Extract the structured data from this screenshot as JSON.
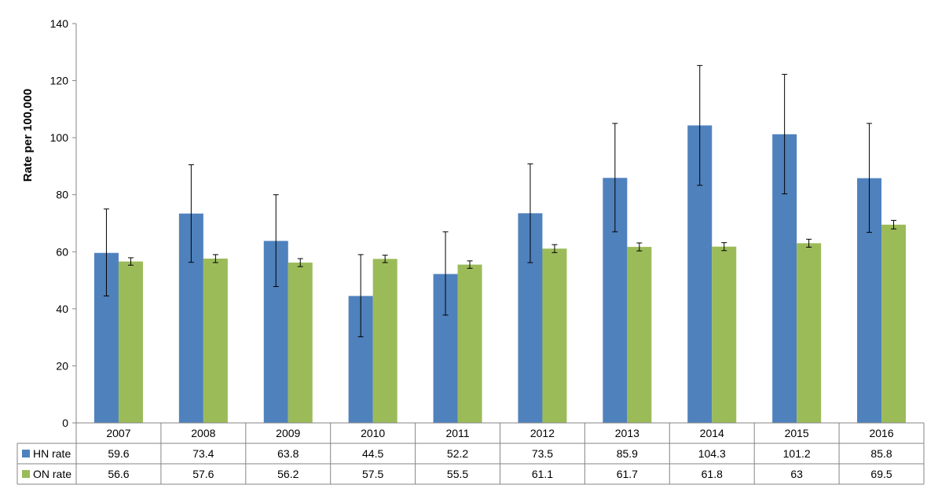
{
  "chart_data": {
    "type": "bar",
    "ylabel": "Rate per 100,000",
    "xlabel": "",
    "title": "",
    "ylim": [
      0,
      140
    ],
    "yticks": [
      0,
      20,
      40,
      60,
      80,
      100,
      120,
      140
    ],
    "categories": [
      "2007",
      "2008",
      "2009",
      "2010",
      "2011",
      "2012",
      "2013",
      "2014",
      "2015",
      "2016"
    ],
    "series": [
      {
        "name": "HN rate",
        "color": "#4f81bd",
        "values": [
          59.6,
          73.4,
          63.8,
          44.5,
          52.2,
          73.5,
          85.9,
          104.3,
          101.2,
          85.8
        ],
        "labels": [
          "59.6",
          "73.4",
          "63.8",
          "44.5",
          "52.2",
          "73.5",
          "85.9",
          "104.3",
          "101.2",
          "85.8"
        ],
        "err_low": [
          44.5,
          56.3,
          47.8,
          30.2,
          37.8,
          56.2,
          67.0,
          83.3,
          80.3,
          66.8
        ],
        "err_high": [
          75.0,
          90.5,
          80.0,
          59.0,
          67.0,
          90.8,
          105.0,
          125.3,
          122.2,
          105.0
        ]
      },
      {
        "name": "ON rate",
        "color": "#9bbb59",
        "values": [
          56.6,
          57.6,
          56.2,
          57.5,
          55.5,
          61.1,
          61.7,
          61.8,
          63,
          69.5
        ],
        "labels": [
          "56.6",
          "57.6",
          "56.2",
          "57.5",
          "55.5",
          "61.1",
          "61.7",
          "61.8",
          "63",
          "69.5"
        ],
        "err_low": [
          55.3,
          56.2,
          54.8,
          56.2,
          54.2,
          59.7,
          60.3,
          60.4,
          61.6,
          68.0
        ],
        "err_high": [
          57.9,
          59.0,
          57.6,
          58.8,
          56.8,
          62.5,
          63.1,
          63.2,
          64.4,
          71.0
        ]
      }
    ],
    "legend": "data-table"
  }
}
